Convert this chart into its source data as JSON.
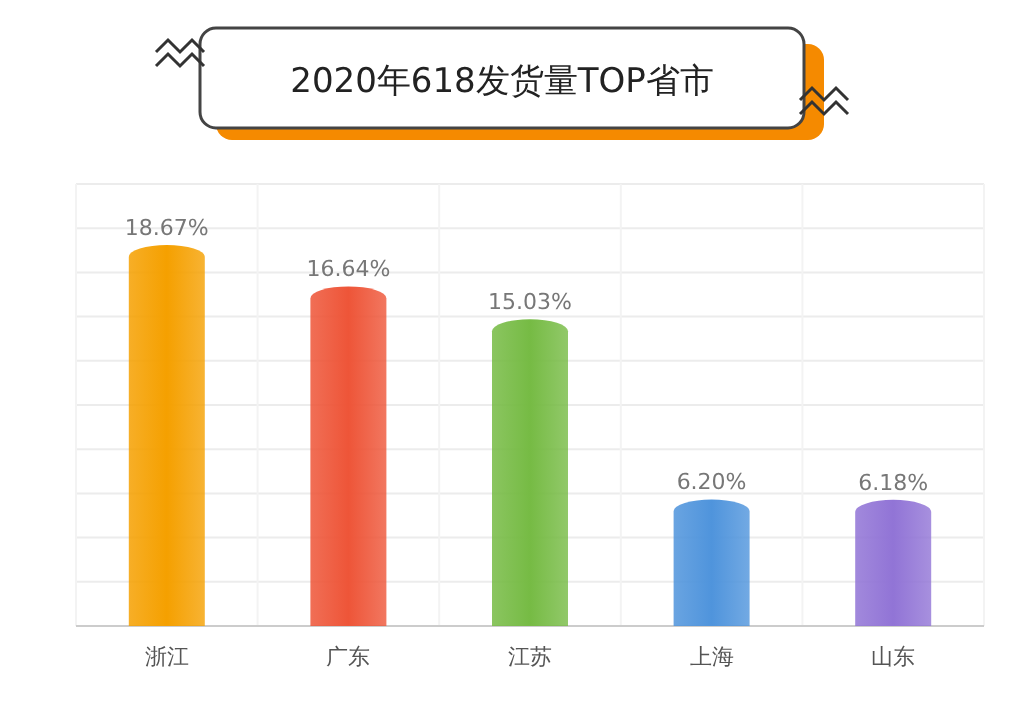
{
  "chart_data": {
    "type": "bar",
    "title": "2020年618发货量TOP省市",
    "categories": [
      "浙江",
      "广东",
      "江苏",
      "上海",
      "山东"
    ],
    "values": [
      18.67,
      16.64,
      15.03,
      6.2,
      6.18
    ],
    "value_labels": [
      "18.67%",
      "16.64%",
      "15.03%",
      "6.20%",
      "6.18%"
    ],
    "colors": [
      "#f5a000",
      "#ee5538",
      "#76bb44",
      "#4f94dc",
      "#9174d6"
    ],
    "grid": true
  }
}
